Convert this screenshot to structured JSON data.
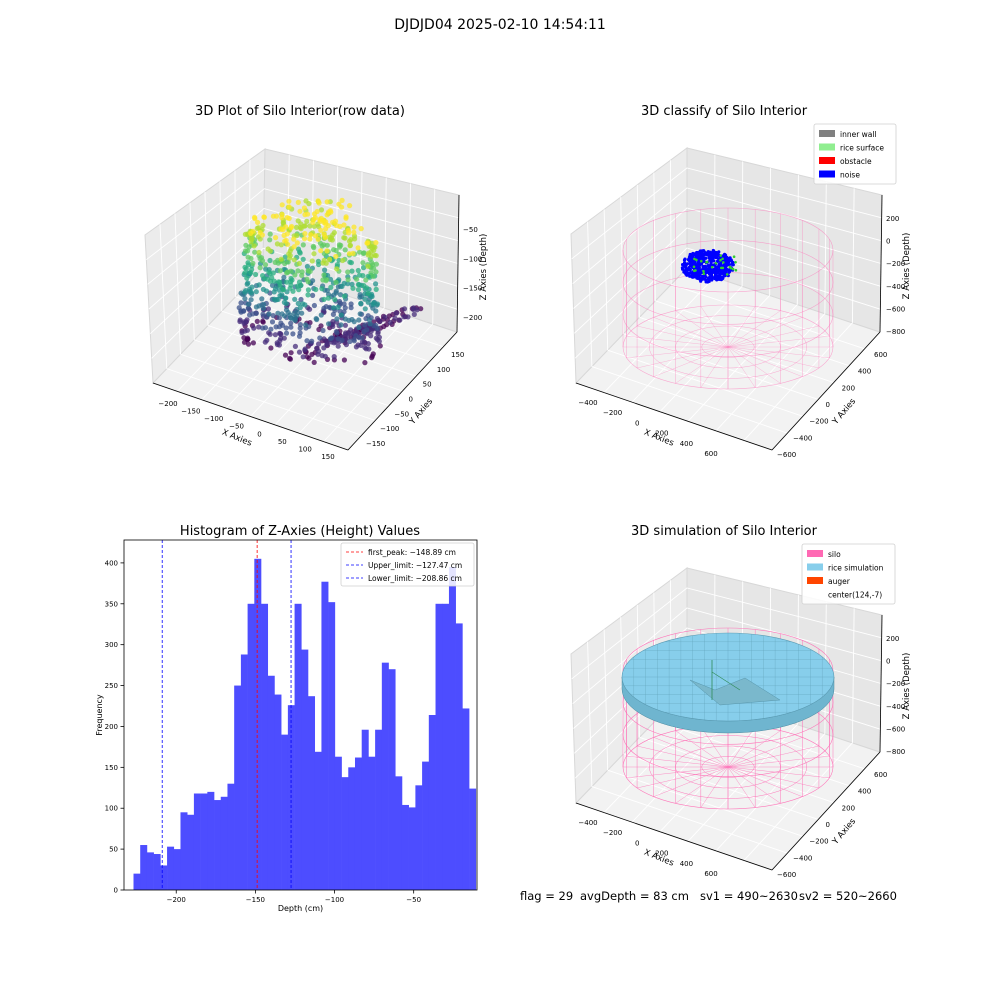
{
  "figure": {
    "suptitle": "DJDJD04 2025-02-10 14:54:11"
  },
  "chart_data": [
    {
      "type": "scatter",
      "title": "3D Plot of Silo Interior(row data)",
      "xlabel": "X Axies",
      "ylabel": "Y Axies",
      "zlabel": "Z Axies (Depth)",
      "x_ticks": [
        "-200",
        "-150",
        "-100",
        "-50",
        "0",
        "50",
        "100",
        "150"
      ],
      "y_ticks": [
        "150",
        "100",
        "50",
        "0",
        "-50",
        "-100",
        "-150"
      ],
      "z_ticks": [
        "-50",
        "-100",
        "-150",
        "-200"
      ],
      "colormap": "viridis"
    },
    {
      "type": "scatter",
      "title": "3D classify of Silo Interior",
      "xlabel": "X Axies",
      "ylabel": "Y Axies",
      "zlabel": "Z Axies (Depth)",
      "x_ticks": [
        "-400",
        "-200",
        "0",
        "200",
        "400",
        "600"
      ],
      "y_ticks": [
        "600",
        "400",
        "200",
        "0",
        "-200",
        "-400",
        "-600"
      ],
      "z_ticks": [
        "200",
        "0",
        "-200",
        "-400",
        "-600",
        "-800"
      ],
      "legend": [
        {
          "label": "inner wall",
          "color": "#808080"
        },
        {
          "label": "rice surface",
          "color": "#90ee90"
        },
        {
          "label": "obstacle",
          "color": "#ff0000"
        },
        {
          "label": "noise",
          "color": "#0000ff"
        }
      ],
      "legend_position": "top-right",
      "wireframe_color": "#ff69b4"
    },
    {
      "type": "bar",
      "title": "Histogram of Z-Axies (Height) Values",
      "xlabel": "Depth (cm)",
      "ylabel": "Frequency",
      "bin_start": -227,
      "bin_width": 4.24,
      "values": [
        20,
        55,
        46,
        44,
        30,
        53,
        50,
        95,
        92,
        118,
        118,
        120,
        110,
        114,
        130,
        250,
        288,
        350,
        405,
        350,
        262,
        239,
        190,
        226,
        350,
        294,
        237,
        169,
        377,
        352,
        163,
        138,
        150,
        162,
        196,
        163,
        196,
        278,
        270,
        139,
        104,
        101,
        128,
        157,
        214,
        350,
        350,
        395,
        326,
        222,
        124
      ],
      "xlim": [
        -233,
        -10
      ],
      "ylim": [
        0,
        428
      ],
      "x_ticks": [
        -200,
        -150,
        -100,
        -50
      ],
      "y_ticks": [
        0,
        50,
        100,
        150,
        200,
        250,
        300,
        350,
        400
      ],
      "bar_color": "#4d4dff",
      "vlines": [
        {
          "value": -148.89,
          "label": "first_peak: -148.89 cm",
          "color": "#ff0000"
        },
        {
          "value": -127.47,
          "label": "Upper_limit: -127.47 cm",
          "color": "#0000ff"
        },
        {
          "value": -208.86,
          "label": "Lower_limit: -208.86 cm",
          "color": "#0000ff"
        }
      ],
      "legend_position": "top-right"
    },
    {
      "type": "scatter",
      "title": "3D simulation of Silo Interior",
      "xlabel": "X Axies",
      "ylabel": "Y Axies",
      "zlabel": "Z Axies (Depth)",
      "x_ticks": [
        "-400",
        "-200",
        "0",
        "200",
        "400",
        "600"
      ],
      "y_ticks": [
        "600",
        "400",
        "200",
        "0",
        "-200",
        "-400",
        "-600"
      ],
      "z_ticks": [
        "200",
        "0",
        "-200",
        "-400",
        "-600",
        "-800"
      ],
      "legend": [
        {
          "label": "silo",
          "color": "#ff69b4"
        },
        {
          "label": "rice simulation",
          "color": "#87ceeb"
        },
        {
          "label": "auger",
          "color": "#ff4500"
        },
        {
          "label": "center(124,-7)",
          "color": ""
        }
      ],
      "legend_position": "top-right"
    }
  ],
  "footer": {
    "flag": "flag = 29",
    "avg_depth": "avgDepth = 83 cm",
    "sv1": "sv1 = 490~2630",
    "sv2": "sv2 = 520~2660"
  }
}
